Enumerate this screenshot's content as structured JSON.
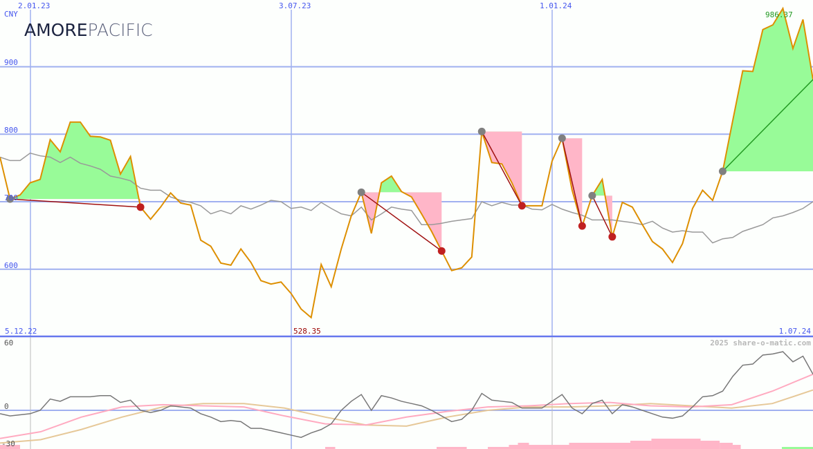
{
  "company_logo": {
    "part1": "AMORE",
    "part2": "PACIFIC"
  },
  "chart_data": [
    {
      "type": "line",
      "currency_label": "CNY",
      "x_tick_labels": [
        "2.01.23",
        "3.07.23",
        "1.01.24"
      ],
      "start_date": "5.12.22",
      "end_date": "1.07.24",
      "y_ticks": [
        600,
        700,
        800,
        900
      ],
      "ylim": [
        520,
        990
      ],
      "max_label": "986.37",
      "min_label": "528.35",
      "series": [
        {
          "role": "price",
          "color": "#dd8f00",
          "values": [
            766,
            704,
            710,
            728,
            733,
            792,
            774,
            818,
            818,
            797,
            796,
            791,
            741,
            767,
            692,
            674,
            692,
            713,
            698,
            695,
            643,
            634,
            609,
            606,
            630,
            610,
            583,
            578,
            581,
            564,
            541,
            528.35,
            607,
            574,
            630,
            679,
            714,
            653,
            728,
            738,
            715,
            707,
            682,
            656,
            627,
            598,
            602,
            618,
            804,
            758,
            756,
            728,
            694,
            694,
            694,
            760,
            794,
            717,
            664,
            709,
            733,
            648,
            699,
            692,
            666,
            641,
            630,
            610,
            638,
            690,
            717,
            702,
            745,
            820,
            894,
            893,
            955,
            962,
            986.37,
            927,
            970,
            881
          ]
        },
        {
          "role": "moving-average",
          "color": "#999999",
          "values": [
            766,
            761,
            761,
            772,
            768,
            766,
            758,
            766,
            757,
            753,
            748,
            738,
            735,
            731,
            720,
            717,
            717,
            707,
            702,
            699,
            694,
            682,
            687,
            682,
            694,
            689,
            695,
            702,
            700,
            690,
            692,
            687,
            699,
            690,
            682,
            679,
            692,
            673,
            682,
            692,
            689,
            687,
            666,
            666,
            668,
            671,
            673,
            675,
            700,
            694,
            699,
            695,
            695,
            689,
            688,
            696,
            689,
            684,
            680,
            673,
            673,
            673,
            671,
            669,
            666,
            671,
            661,
            655,
            657,
            655,
            655,
            639,
            645,
            647,
            656,
            661,
            666,
            676,
            679,
            684,
            690,
            700
          ]
        }
      ],
      "trades": [
        {
          "buy": 1,
          "sell": 14
        },
        {
          "buy": 36,
          "sell": 44
        },
        {
          "buy": 48,
          "sell": 52
        },
        {
          "buy": 56,
          "sell": 58
        },
        {
          "buy": 59,
          "sell": 61
        },
        {
          "buy": 72,
          "sell": null
        }
      ],
      "colors": {
        "gain": "#98fb98",
        "loss": "#ffb6c8",
        "grid": "#a0b0f0",
        "sell_line": "#a01010",
        "open_line": "#229922",
        "buy_marker": "#808080",
        "sell_marker": "#c02020"
      }
    },
    {
      "type": "line",
      "y_ticks": [
        -30,
        0,
        60
      ],
      "ylim": [
        -34,
        62
      ],
      "watermark": "2025 share-o-matic.com",
      "momentum": [
        -3,
        -5,
        -4,
        -3,
        0,
        10,
        8,
        12,
        12,
        12,
        13,
        13,
        7,
        9,
        0,
        -2,
        0,
        4,
        3,
        2,
        -3,
        -6,
        -10,
        -9,
        -10,
        -16,
        -16,
        -18,
        -20,
        -22,
        -24,
        -20,
        -17,
        -12,
        0,
        8,
        14,
        0,
        13,
        11,
        8,
        6,
        4,
        0,
        -5,
        -10,
        -8,
        0,
        15,
        9,
        8,
        7,
        2,
        2,
        2,
        8,
        14,
        2,
        -3,
        6,
        9,
        -3,
        5,
        3,
        0,
        -3,
        -6,
        -7,
        -5,
        3,
        12,
        13,
        17,
        30,
        40,
        41,
        49,
        50,
        52,
        43,
        48,
        32
      ],
      "signal_pink": [
        -25,
        -19,
        -6,
        3,
        5,
        4,
        3,
        -5,
        -12,
        -13,
        -6,
        -1,
        3,
        4,
        6,
        7,
        4,
        3,
        5,
        17,
        32
      ],
      "signal_tan": [
        -29,
        -26,
        -17,
        -6,
        3,
        6,
        6,
        2,
        -6,
        -13,
        -14,
        -6,
        0,
        3,
        3,
        4,
        6,
        4,
        2,
        6,
        18
      ],
      "histogram": [
        {
          "start": 0,
          "end": 2,
          "level": 2,
          "sign": "neg"
        },
        {
          "start": 32.4,
          "end": 33.4,
          "level": 1,
          "sign": "neg"
        },
        {
          "start": 43.5,
          "end": 46.5,
          "level": 1,
          "sign": "neg"
        },
        {
          "start": 48.6,
          "end": 50.7,
          "level": 1,
          "sign": "neg"
        },
        {
          "start": 50.7,
          "end": 51.6,
          "level": 2,
          "sign": "neg"
        },
        {
          "start": 51.6,
          "end": 52.7,
          "level": 3,
          "sign": "neg"
        },
        {
          "start": 52.7,
          "end": 56.7,
          "level": 2,
          "sign": "neg"
        },
        {
          "start": 56.7,
          "end": 62.8,
          "level": 3,
          "sign": "neg"
        },
        {
          "start": 62.8,
          "end": 64.9,
          "level": 4,
          "sign": "neg"
        },
        {
          "start": 64.9,
          "end": 69.8,
          "level": 5,
          "sign": "neg"
        },
        {
          "start": 69.8,
          "end": 71.7,
          "level": 4,
          "sign": "neg"
        },
        {
          "start": 71.7,
          "end": 73,
          "level": 3,
          "sign": "neg"
        },
        {
          "start": 73,
          "end": 73.8,
          "level": 2,
          "sign": "neg"
        },
        {
          "start": 77.9,
          "end": 81,
          "level": 1,
          "sign": "pos"
        }
      ],
      "colors": {
        "momentum": "#777777",
        "signal_pink": "#ffaac0",
        "signal_tan": "#e6c898"
      }
    }
  ]
}
